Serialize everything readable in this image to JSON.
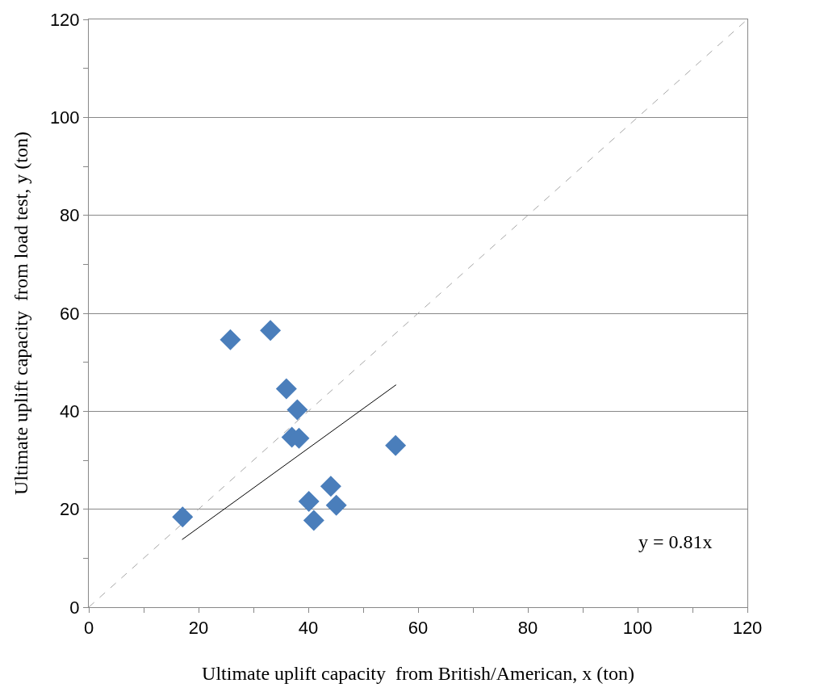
{
  "chart_data": {
    "type": "scatter",
    "xlabel": "Ultimate uplift capacity  from British/American, x (ton)",
    "ylabel": "Ultimate uplift capacity  from load test, y (ton)",
    "series": [
      {
        "type": "line",
        "color": "#a6a6a6",
        "line_style": "dashed",
        "marker": "none",
        "x": [
          0,
          120
        ],
        "values": [
          0,
          120
        ]
      },
      {
        "type": "line",
        "color": "#000000",
        "line_style": "solid",
        "marker": "none",
        "x": [
          17,
          56
        ],
        "values": [
          13.8,
          45.4
        ]
      },
      {
        "color": "#4a7ebb",
        "marker": "diamond",
        "x": [
          17.1,
          25.8,
          33.1,
          36.0,
          38.0,
          37.0,
          38.3,
          40.1,
          41.0,
          44.1,
          45.1,
          55.9
        ],
        "values": [
          18.4,
          54.6,
          56.5,
          44.6,
          40.3,
          34.7,
          34.5,
          21.6,
          17.7,
          24.7,
          20.8,
          33.0
        ]
      }
    ],
    "xlim": [
      0,
      120
    ],
    "ylim": [
      0,
      120
    ],
    "xticks": [
      0,
      {
        "value": 10,
        "label": null
      },
      20,
      {
        "value": 30,
        "label": null
      },
      40,
      {
        "value": 50,
        "label": null
      },
      60,
      {
        "value": 70,
        "label": null
      },
      80,
      {
        "value": 90,
        "label": null
      },
      100,
      {
        "value": 110,
        "label": null
      },
      120
    ],
    "yticks": [
      0,
      {
        "value": 10,
        "label": null
      },
      20,
      {
        "value": 30,
        "label": null
      },
      40,
      {
        "value": 50,
        "label": null
      },
      60,
      {
        "value": 70,
        "label": null
      },
      80,
      {
        "value": 90,
        "label": null
      },
      100,
      {
        "value": 110,
        "label": null
      },
      120
    ],
    "grid": "y",
    "annotations": [
      "y = 0.81x"
    ]
  }
}
